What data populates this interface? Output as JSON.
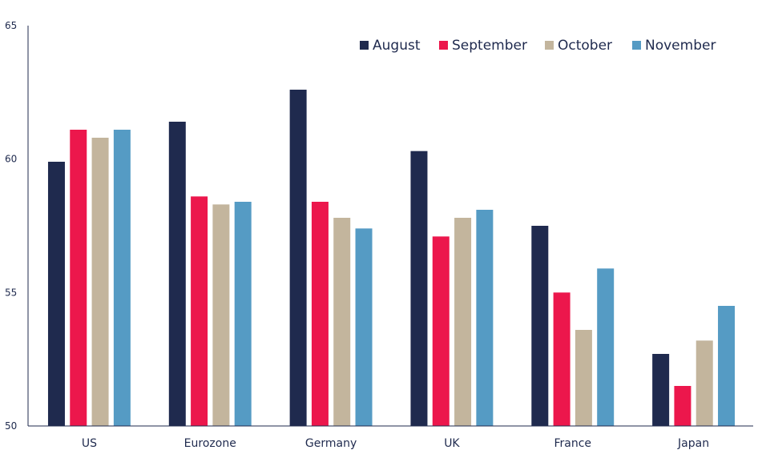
{
  "chart_data": {
    "type": "bar",
    "title": "",
    "xlabel": "",
    "ylabel": "",
    "ylim": [
      50,
      65
    ],
    "yticks": [
      50,
      55,
      60,
      65
    ],
    "grid": false,
    "legend_position": "top-right",
    "categories": [
      "US",
      "Eurozone",
      "Germany",
      "UK",
      "France",
      "Japan"
    ],
    "series": [
      {
        "name": "August",
        "color": "#1f2a4e",
        "values": [
          59.9,
          61.4,
          62.6,
          60.3,
          57.5,
          52.7
        ]
      },
      {
        "name": "September",
        "color": "#ec174c",
        "values": [
          61.1,
          58.6,
          58.4,
          57.1,
          55.0,
          51.5
        ]
      },
      {
        "name": "October",
        "color": "#c3b59d",
        "values": [
          60.8,
          58.3,
          57.8,
          57.8,
          53.6,
          53.2
        ]
      },
      {
        "name": "November",
        "color": "#559bc4",
        "values": [
          61.1,
          58.4,
          57.4,
          58.1,
          55.9,
          54.5
        ]
      }
    ]
  }
}
